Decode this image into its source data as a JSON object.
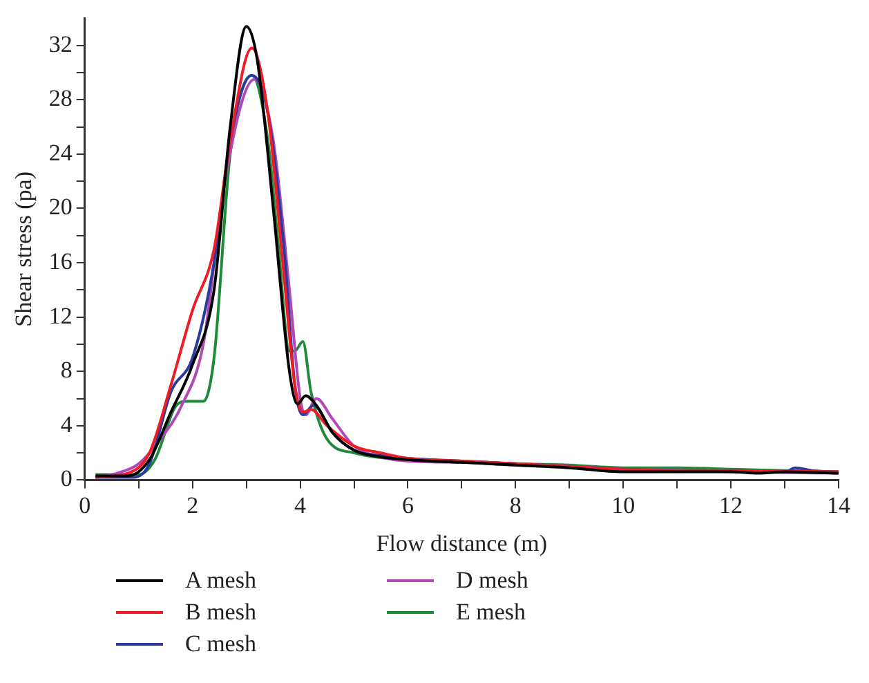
{
  "chart_data": {
    "type": "line",
    "xlabel": "Flow distance (m)",
    "ylabel": "Shear stress (pa)",
    "xlim": [
      0,
      14
    ],
    "ylim": [
      0,
      34
    ],
    "xticks": [
      0,
      {
        "value": 1,
        "label": null
      },
      2,
      {
        "value": 3,
        "label": null
      },
      4,
      {
        "value": 5,
        "label": null
      },
      6,
      {
        "value": 7,
        "label": null
      },
      8,
      {
        "value": 9,
        "label": null
      },
      10,
      {
        "value": 11,
        "label": null
      },
      12,
      {
        "value": 13,
        "label": null
      },
      14
    ],
    "yticks": [
      0,
      {
        "value": 2,
        "label": null
      },
      4,
      {
        "value": 6,
        "label": null
      },
      8,
      {
        "value": 10,
        "label": null
      },
      12,
      {
        "value": 14,
        "label": null
      },
      16,
      {
        "value": 18,
        "label": null
      },
      20,
      {
        "value": 22,
        "label": null
      },
      24,
      {
        "value": 26,
        "label": null
      },
      28,
      {
        "value": 30,
        "label": null
      },
      32
    ],
    "grid": false,
    "legend": "bottom",
    "marker": "none",
    "line_style": "solid",
    "series": [
      {
        "name": "A mesh",
        "color": "#000000",
        "x": [
          0.2,
          0.8,
          1.2,
          1.6,
          2.0,
          2.4,
          2.7,
          3.0,
          3.2,
          3.5,
          3.8,
          3.95,
          4.1,
          4.3,
          4.6,
          5,
          5.5,
          6,
          7,
          8,
          9,
          10,
          11,
          12,
          12.5,
          13,
          14
        ],
        "values": [
          0.3,
          0.3,
          1.5,
          5,
          8.5,
          14,
          26,
          33.4,
          31,
          20,
          8,
          5.6,
          6.2,
          5.5,
          3.5,
          2.2,
          1.7,
          1.5,
          1.3,
          1.1,
          0.9,
          0.6,
          0.6,
          0.6,
          0.5,
          0.6,
          0.5
        ]
      },
      {
        "name": "B mesh",
        "color": "#ee1c25",
        "x": [
          0.2,
          0.8,
          1.2,
          1.6,
          2.0,
          2.4,
          2.7,
          3.1,
          3.4,
          3.7,
          3.9,
          4.05,
          4.2,
          4.5,
          5,
          5.5,
          6,
          7,
          8,
          9,
          10,
          11,
          12,
          14
        ],
        "values": [
          0.2,
          0.5,
          2,
          7,
          12.5,
          17,
          25,
          31.8,
          27,
          15,
          7,
          5,
          5.2,
          4,
          2.5,
          2,
          1.6,
          1.4,
          1.2,
          1,
          0.8,
          0.7,
          0.7,
          0.6
        ]
      },
      {
        "name": "C mesh",
        "color": "#2b3a9e",
        "x": [
          0.2,
          0.9,
          1.2,
          1.6,
          2,
          2.4,
          2.7,
          3.1,
          3.4,
          3.7,
          3.9,
          4.05,
          4.25,
          4.6,
          5,
          5.5,
          6,
          7,
          8,
          9,
          10,
          11,
          12,
          13,
          13.2,
          13.5,
          14
        ],
        "values": [
          0.2,
          0.2,
          1.2,
          6.5,
          9,
          16,
          25,
          29.8,
          27,
          17,
          7,
          4.8,
          5.5,
          3.5,
          2.2,
          1.8,
          1.6,
          1.4,
          1.2,
          1,
          0.8,
          0.7,
          0.7,
          0.6,
          0.9,
          0.7,
          0.6
        ]
      },
      {
        "name": "D mesh",
        "color": "#b048b5",
        "x": [
          0.2,
          0.6,
          1,
          1.4,
          1.8,
          2.2,
          2.6,
          3.15,
          3.5,
          3.8,
          4.0,
          4.1,
          4.3,
          4.6,
          5,
          5.5,
          6,
          7,
          8,
          9,
          10,
          11,
          12,
          14
        ],
        "values": [
          0.2,
          0.5,
          1.2,
          3,
          5.5,
          10,
          22,
          29.5,
          25,
          14,
          6,
          4.8,
          6,
          4.5,
          2.5,
          1.7,
          1.4,
          1.3,
          1.1,
          1,
          0.8,
          0.7,
          0.6,
          0.5
        ]
      },
      {
        "name": "E mesh",
        "color": "#1f8a3a",
        "x": [
          0.2,
          1.0,
          1.3,
          1.7,
          1.9,
          2.2,
          2.4,
          2.7,
          3.1,
          3.4,
          3.6,
          3.8,
          3.9,
          4.05,
          4.2,
          4.5,
          5,
          6,
          7,
          8,
          9,
          10,
          11,
          12,
          13,
          14
        ],
        "values": [
          0.4,
          0.4,
          1.5,
          5.5,
          5.8,
          5.8,
          9,
          24,
          29.8,
          25,
          17,
          9.5,
          9.5,
          10.2,
          6.5,
          3,
          2,
          1.5,
          1.4,
          1.2,
          1.1,
          0.9,
          0.9,
          0.8,
          0.7,
          0.6
        ]
      }
    ]
  }
}
